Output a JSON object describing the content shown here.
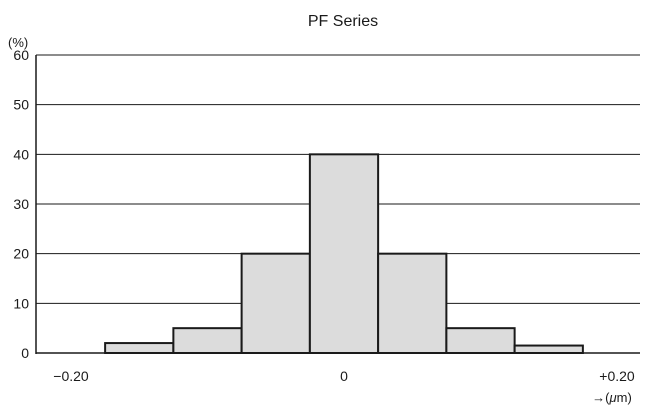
{
  "chart_data": {
    "type": "bar",
    "title": "PF Series",
    "ylabel": "(%)",
    "xunit_prefix": "→(",
    "xunit_symbol": "μ",
    "xunit_suffix": "m)",
    "ylim": [
      0,
      60
    ],
    "yticks": [
      "0",
      "10",
      "20",
      "30",
      "40",
      "50",
      "60"
    ],
    "xticks": [
      "−0.20",
      "0",
      "+0.20"
    ],
    "xlim": [
      -0.2,
      0.2
    ],
    "bins": [
      {
        "from": -0.175,
        "to": -0.125,
        "value": 2
      },
      {
        "from": -0.125,
        "to": -0.075,
        "value": 5
      },
      {
        "from": -0.075,
        "to": -0.025,
        "value": 20
      },
      {
        "from": -0.025,
        "to": 0.025,
        "value": 40
      },
      {
        "from": 0.025,
        "to": 0.075,
        "value": 20
      },
      {
        "from": 0.075,
        "to": 0.125,
        "value": 5
      },
      {
        "from": 0.125,
        "to": 0.175,
        "value": 1.5
      }
    ],
    "grid": true,
    "bar_fill": "#dcdcdc",
    "bar_stroke": "#1a1a1a",
    "grid_color": "#1a1a1a"
  }
}
